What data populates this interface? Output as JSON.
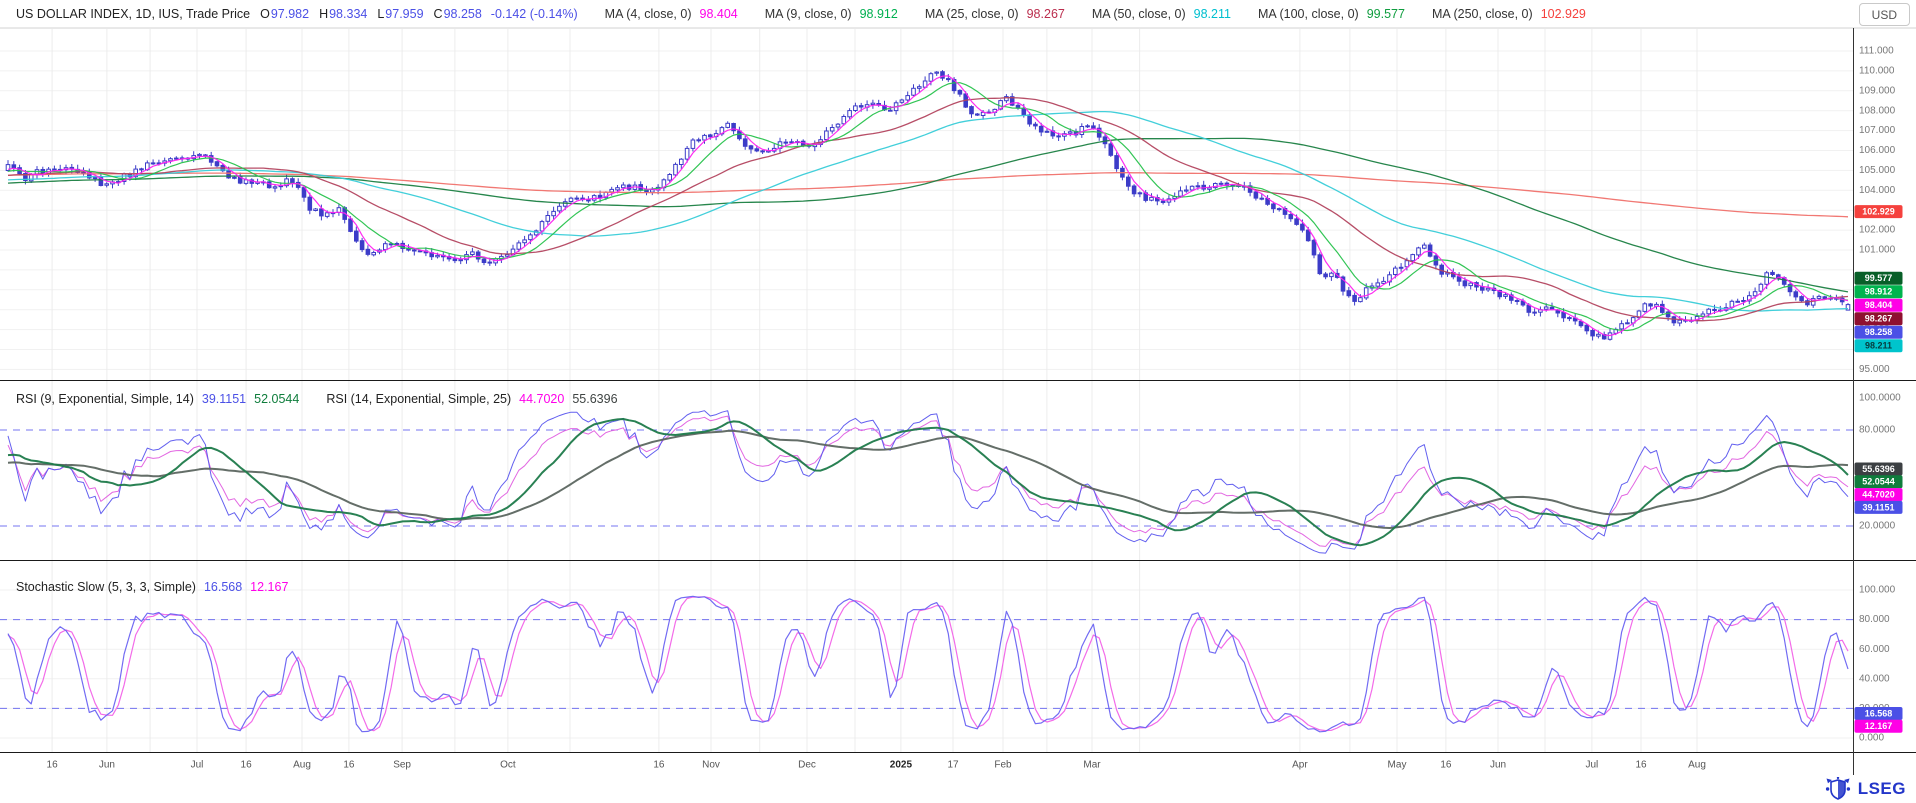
{
  "header": {
    "currency": "USD",
    "segments": [
      {
        "text": "US DOLLAR INDEX, 1D, IUS, Trade Price",
        "cls": "t",
        "color": "#222",
        "name": "instrument-legend"
      },
      {
        "text": "O",
        "cls": "pfx",
        "color": "#222"
      },
      {
        "text": "97.982",
        "cls": "num",
        "color": "#4b50e6"
      },
      {
        "text": "H",
        "cls": "pfx",
        "color": "#222"
      },
      {
        "text": "98.334",
        "cls": "num",
        "color": "#4b50e6"
      },
      {
        "text": "L",
        "cls": "pfx",
        "color": "#222"
      },
      {
        "text": "97.959",
        "cls": "num",
        "color": "#4b50e6"
      },
      {
        "text": "C",
        "cls": "pfx",
        "color": "#222"
      },
      {
        "text": "98.258",
        "cls": "num",
        "color": "#4b50e6"
      },
      {
        "text": "-0.142 (-0.14%)",
        "cls": "chg",
        "color": "#4b50e6"
      },
      {
        "text": "MA (4, close, 0)",
        "cls": "lab",
        "color": "#333"
      },
      {
        "text": "98.404",
        "cls": "val",
        "color": "#ff00ea"
      },
      {
        "text": "MA (9, close, 0)",
        "cls": "lab",
        "color": "#333"
      },
      {
        "text": "98.912",
        "cls": "val",
        "color": "#00b050"
      },
      {
        "text": "MA (25, close, 0)",
        "cls": "lab",
        "color": "#333"
      },
      {
        "text": "98.267",
        "cls": "val",
        "color": "#bb2e4e"
      },
      {
        "text": "MA (50, close, 0)",
        "cls": "lab",
        "color": "#333"
      },
      {
        "text": "98.211",
        "cls": "val",
        "color": "#00bfcf"
      },
      {
        "text": "MA (100, close, 0)",
        "cls": "lab",
        "color": "#333"
      },
      {
        "text": "99.577",
        "cls": "val",
        "color": "#0f9d3f"
      },
      {
        "text": "MA (250, close, 0)",
        "cls": "lab",
        "color": "#333"
      },
      {
        "text": "102.929",
        "cls": "val",
        "color": "#f5413d"
      }
    ]
  },
  "rsi_panel": {
    "segments": [
      {
        "text": "RSI (9, Exponential, Simple, 14)",
        "cls": "t",
        "color": "#222",
        "name": "rsi9-legend"
      },
      {
        "text": "39.1151",
        "cls": "val",
        "color": "#4b50e6"
      },
      {
        "text": "52.0544",
        "cls": "val",
        "color": "#0f7d3c"
      },
      {
        "text": "RSI (14, Exponential, Simple, 25)",
        "cls": "lab",
        "color": "#222",
        "name": "rsi14-legend"
      },
      {
        "text": "44.7020",
        "cls": "val",
        "color": "#ff00ea"
      },
      {
        "text": "55.6396",
        "cls": "val",
        "color": "#3f4443"
      }
    ]
  },
  "stoch_panel": {
    "segments": [
      {
        "text": "Stochastic Slow (5, 3, 3, Simple)",
        "cls": "t",
        "color": "#222",
        "name": "stoch-legend-label"
      },
      {
        "text": "16.568",
        "cls": "val",
        "color": "#4b50e6"
      },
      {
        "text": "12.167",
        "cls": "val",
        "color": "#ff00ea"
      }
    ]
  },
  "price_axis": {
    "decimals": 3,
    "ticks": [
      111,
      110,
      109,
      108,
      107,
      106,
      105,
      104,
      102,
      101,
      97,
      96,
      95
    ],
    "badges": [
      {
        "text": "102.929",
        "value": 102.929,
        "bg": "#f5413d",
        "fg": "#ffffff"
      },
      {
        "text": "99.577",
        "value": 99.577,
        "bg": "#085f28",
        "fg": "#ffffff"
      },
      {
        "text": "98.912",
        "value": 98.912,
        "bg": "#00b44e",
        "fg": "#ffffff"
      },
      {
        "text": "98.404",
        "value": 98.404,
        "bg": "#ff00e6",
        "fg": "#ffffff"
      },
      {
        "text": "98.267",
        "value": 98.267,
        "bg": "#8f1030",
        "fg": "#ffffff"
      },
      {
        "text": "98.258",
        "value": 98.258,
        "bg": "#4b50e6",
        "fg": "#ffffff"
      },
      {
        "text": "98.211",
        "value": 98.211,
        "bg": "#00c4cc",
        "fg": "#073a3d"
      }
    ]
  },
  "rsi_axis": {
    "decimals": 4,
    "ticks": [
      100,
      80,
      20
    ],
    "badges": [
      {
        "text": "55.6396",
        "value": 55.6396,
        "bg": "#3c4043",
        "fg": "#ffffff"
      },
      {
        "text": "52.0544",
        "value": 52.0544,
        "bg": "#0f7d3c",
        "fg": "#ffffff"
      },
      {
        "text": "44.7020",
        "value": 44.702,
        "bg": "#ff00e6",
        "fg": "#ffffff"
      },
      {
        "text": "39.1151",
        "value": 39.1151,
        "bg": "#4b50e6",
        "fg": "#ffffff"
      }
    ]
  },
  "stoch_axis": {
    "decimals": 3,
    "ticks": [
      100,
      80,
      60,
      40,
      20,
      0
    ],
    "badges": [
      {
        "text": "16.568",
        "value": 16.568,
        "bg": "#4b50e6",
        "fg": "#ffffff"
      },
      {
        "text": "12.167",
        "value": 12.167,
        "bg": "#ff00e6",
        "fg": "#ffffff"
      }
    ]
  },
  "time_axis": {
    "labels": [
      {
        "text": "16",
        "x": 0.0281
      },
      {
        "text": "Jun",
        "x": 0.0577
      },
      {
        "text": "Jul",
        "x": 0.1063
      },
      {
        "text": "16",
        "x": 0.1328
      },
      {
        "text": "Aug",
        "x": 0.163
      },
      {
        "text": "16",
        "x": 0.1883
      },
      {
        "text": "Sep",
        "x": 0.217
      },
      {
        "text": "Oct",
        "x": 0.2741
      },
      {
        "text": "16",
        "x": 0.3556
      },
      {
        "text": "Nov",
        "x": 0.3837
      },
      {
        "text": "Dec",
        "x": 0.4355
      },
      {
        "text": "2025",
        "x": 0.4862,
        "bold": true
      },
      {
        "text": "17",
        "x": 0.5143
      },
      {
        "text": "Feb",
        "x": 0.5413
      },
      {
        "text": "Mar",
        "x": 0.5893
      },
      {
        "text": "Apr",
        "x": 0.7015
      },
      {
        "text": "May",
        "x": 0.7539
      },
      {
        "text": "16",
        "x": 0.7803
      },
      {
        "text": "Jun",
        "x": 0.8084
      },
      {
        "text": "Jul",
        "x": 0.8591
      },
      {
        "text": "16",
        "x": 0.8856
      },
      {
        "text": "Aug",
        "x": 0.9158
      }
    ],
    "extra_gridlines": [
      0.081,
      0.2455,
      0.3076,
      0.41,
      0.4614,
      0.565,
      0.615,
      0.7285,
      0.8338
    ]
  },
  "logo": {
    "text": "LSEG"
  },
  "colors": {
    "candle": "#3c3cc8",
    "grid": "#f1f1f1",
    "grid_v": "#ececec",
    "dashed": "#5353f0",
    "axis_text": "#777",
    "separator": "#1a1a1a",
    "ma4": "#ff22f0",
    "ma9": "#27c24c",
    "ma25": "#b3445f",
    "ma50": "#38ccd8",
    "ma100": "#1b7f42",
    "ma250": "#f0716b",
    "rsi9": "#5b57ee",
    "rsi9avg": "#1d7a4a",
    "rsi14": "#e05fe0",
    "rsi14avg": "#5c6660",
    "stochK": "#6a63f2",
    "stochD": "#f263e8"
  },
  "chart_data": {
    "type": "candlestick",
    "title": "US DOLLAR INDEX, 1D, IUS, Trade Price",
    "x_range": "mid-May 2024 to mid-Aug 2025, daily bars",
    "ylim": [
      94.3,
      112.2
    ],
    "visible_candles": 318,
    "ohlc_last": {
      "open": 97.982,
      "high": 98.334,
      "low": 97.959,
      "close": 98.258,
      "prev_close": 98.4,
      "change": -0.142,
      "change_pct": "-0.14%"
    },
    "close_anchors": [
      [
        0.0,
        105.2
      ],
      [
        0.008,
        104.6
      ],
      [
        0.022,
        105.1
      ],
      [
        0.04,
        104.9
      ],
      [
        0.054,
        104.2
      ],
      [
        0.062,
        104.6
      ],
      [
        0.075,
        105.2
      ],
      [
        0.09,
        105.5
      ],
      [
        0.103,
        105.9
      ],
      [
        0.112,
        105.3
      ],
      [
        0.122,
        104.6
      ],
      [
        0.133,
        104.3
      ],
      [
        0.147,
        104.3
      ],
      [
        0.155,
        104.5
      ],
      [
        0.163,
        103.2
      ],
      [
        0.17,
        102.8
      ],
      [
        0.18,
        103.1
      ],
      [
        0.19,
        101.3
      ],
      [
        0.198,
        100.7
      ],
      [
        0.206,
        101.5
      ],
      [
        0.214,
        101.1
      ],
      [
        0.228,
        100.9
      ],
      [
        0.242,
        100.5
      ],
      [
        0.252,
        100.9
      ],
      [
        0.262,
        100.3
      ],
      [
        0.274,
        100.9
      ],
      [
        0.288,
        102.2
      ],
      [
        0.302,
        103.4
      ],
      [
        0.32,
        103.7
      ],
      [
        0.338,
        104.2
      ],
      [
        0.35,
        103.9
      ],
      [
        0.36,
        104.9
      ],
      [
        0.372,
        106.4
      ],
      [
        0.384,
        106.9
      ],
      [
        0.392,
        107.3
      ],
      [
        0.402,
        106.2
      ],
      [
        0.412,
        105.9
      ],
      [
        0.422,
        106.4
      ],
      [
        0.435,
        106.2
      ],
      [
        0.447,
        107.1
      ],
      [
        0.46,
        108.1
      ],
      [
        0.472,
        108.3
      ],
      [
        0.48,
        108.0
      ],
      [
        0.486,
        108.6
      ],
      [
        0.497,
        109.4
      ],
      [
        0.506,
        110.0
      ],
      [
        0.514,
        109.1
      ],
      [
        0.524,
        107.9
      ],
      [
        0.535,
        108.0
      ],
      [
        0.541,
        108.8
      ],
      [
        0.551,
        107.8
      ],
      [
        0.562,
        106.9
      ],
      [
        0.572,
        106.6
      ],
      [
        0.582,
        107.0
      ],
      [
        0.589,
        107.3
      ],
      [
        0.597,
        106.1
      ],
      [
        0.607,
        104.3
      ],
      [
        0.617,
        103.6
      ],
      [
        0.628,
        103.5
      ],
      [
        0.642,
        104.1
      ],
      [
        0.657,
        104.3
      ],
      [
        0.67,
        104.2
      ],
      [
        0.683,
        103.5
      ],
      [
        0.694,
        102.9
      ],
      [
        0.702,
        102.3
      ],
      [
        0.708,
        101.2
      ],
      [
        0.714,
        99.7
      ],
      [
        0.72,
        99.9
      ],
      [
        0.727,
        98.7
      ],
      [
        0.733,
        98.4
      ],
      [
        0.74,
        99.3
      ],
      [
        0.748,
        99.6
      ],
      [
        0.756,
        100.1
      ],
      [
        0.764,
        100.9
      ],
      [
        0.77,
        101.3
      ],
      [
        0.777,
        100.1
      ],
      [
        0.784,
        99.6
      ],
      [
        0.793,
        99.3
      ],
      [
        0.803,
        99.0
      ],
      [
        0.812,
        98.7
      ],
      [
        0.82,
        98.3
      ],
      [
        0.828,
        97.9
      ],
      [
        0.836,
        98.1
      ],
      [
        0.845,
        97.6
      ],
      [
        0.854,
        97.2
      ],
      [
        0.861,
        96.8
      ],
      [
        0.868,
        96.5
      ],
      [
        0.876,
        97.1
      ],
      [
        0.884,
        97.7
      ],
      [
        0.892,
        98.4
      ],
      [
        0.9,
        97.9
      ],
      [
        0.908,
        97.3
      ],
      [
        0.916,
        97.6
      ],
      [
        0.924,
        97.9
      ],
      [
        0.932,
        98.1
      ],
      [
        0.94,
        98.4
      ],
      [
        0.948,
        98.8
      ],
      [
        0.956,
        99.8
      ],
      [
        0.962,
        99.5
      ],
      [
        0.97,
        98.9
      ],
      [
        0.978,
        98.4
      ],
      [
        0.988,
        98.6
      ],
      [
        1.0,
        98.26
      ]
    ],
    "prehistory_anchors": [
      [
        0,
        103.2
      ],
      [
        0.15,
        105.5
      ],
      [
        0.3,
        106.6
      ],
      [
        0.45,
        104.6
      ],
      [
        0.6,
        103.6
      ],
      [
        0.75,
        104.6
      ],
      [
        0.88,
        104.2
      ],
      [
        1.0,
        105.0
      ]
    ],
    "moving_averages": [
      {
        "period": 4,
        "last": 98.404,
        "color_key": "ma4"
      },
      {
        "period": 9,
        "last": 98.912,
        "color_key": "ma9"
      },
      {
        "period": 25,
        "last": 98.267,
        "color_key": "ma25"
      },
      {
        "period": 50,
        "last": 98.211,
        "color_key": "ma50"
      },
      {
        "period": 100,
        "last": 99.577,
        "color_key": "ma100"
      },
      {
        "period": 250,
        "last": 102.929,
        "color_key": "ma250"
      }
    ],
    "rsi": {
      "fast_period": 9,
      "fast_avg": 14,
      "slow_period": 14,
      "slow_avg": 25,
      "last": {
        "rsi9": 39.1151,
        "rsi9_avg": 52.0544,
        "rsi14": 44.702,
        "rsi14_avg": 55.6396
      },
      "dashed_levels": [
        80,
        20
      ],
      "range": [
        0,
        100
      ]
    },
    "stochastic": {
      "params": "5, 3, 3, Simple",
      "k_last": 16.568,
      "d_last": 12.167,
      "dashed_levels": [
        80,
        20
      ],
      "range": [
        0,
        100
      ]
    }
  }
}
